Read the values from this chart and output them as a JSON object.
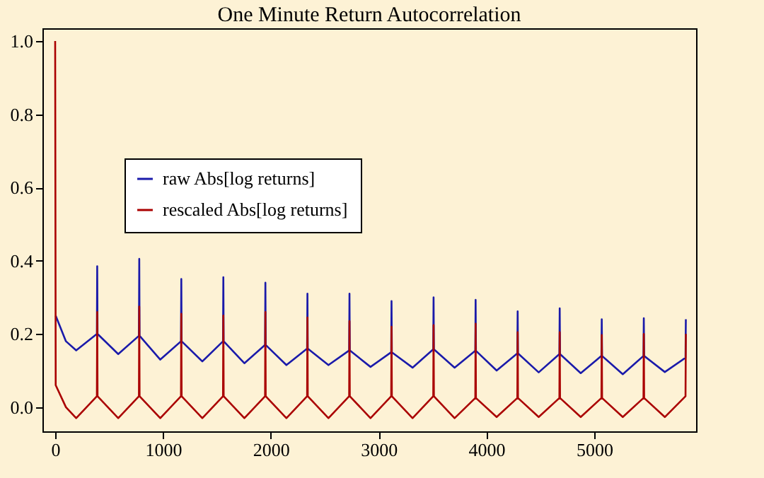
{
  "chart_data": {
    "type": "line",
    "title": "One Minute Return Autocorrelation",
    "x": [
      0,
      5,
      100,
      195,
      387,
      390,
      393,
      585,
      777,
      780,
      783,
      975,
      1167,
      1170,
      1173,
      1365,
      1557,
      1560,
      1563,
      1755,
      1947,
      1950,
      1953,
      2145,
      2337,
      2340,
      2343,
      2535,
      2727,
      2730,
      2733,
      2925,
      3117,
      3120,
      3123,
      3315,
      3507,
      3510,
      3513,
      3705,
      3897,
      3900,
      3903,
      4095,
      4287,
      4290,
      4293,
      4485,
      4677,
      4680,
      4683,
      4875,
      5067,
      5070,
      5073,
      5265,
      5457,
      5460,
      5463,
      5655,
      5847,
      5850
    ],
    "series": [
      {
        "name": "raw Abs[log returns]",
        "color": "#1a1aaa",
        "values": [
          null,
          0.25,
          0.18,
          0.155,
          0.2,
          0.385,
          0.2,
          0.145,
          0.195,
          0.405,
          0.195,
          0.13,
          0.18,
          0.35,
          0.18,
          0.125,
          0.18,
          0.355,
          0.18,
          0.12,
          0.17,
          0.34,
          0.17,
          0.115,
          0.16,
          0.31,
          0.16,
          0.115,
          0.155,
          0.31,
          0.155,
          0.11,
          0.15,
          0.29,
          0.15,
          0.108,
          0.158,
          0.3,
          0.158,
          0.108,
          0.154,
          0.293,
          0.154,
          0.1,
          0.147,
          0.262,
          0.147,
          0.095,
          0.145,
          0.27,
          0.145,
          0.093,
          0.14,
          0.24,
          0.14,
          0.09,
          0.14,
          0.243,
          0.14,
          0.096,
          0.135,
          0.24
        ]
      },
      {
        "name": "rescaled Abs[log returns]",
        "color": "#aa0000",
        "values": [
          1.0,
          0.06,
          0.0,
          -0.03,
          0.03,
          0.26,
          0.03,
          -0.03,
          0.03,
          0.275,
          0.03,
          -0.03,
          0.03,
          0.255,
          0.03,
          -0.03,
          0.03,
          0.25,
          0.03,
          -0.03,
          0.03,
          0.26,
          0.03,
          -0.03,
          0.03,
          0.245,
          0.03,
          -0.03,
          0.03,
          0.235,
          0.03,
          -0.03,
          0.03,
          0.22,
          0.03,
          -0.03,
          0.03,
          0.224,
          0.03,
          -0.03,
          0.025,
          0.228,
          0.025,
          -0.027,
          0.025,
          0.205,
          0.025,
          -0.027,
          0.025,
          0.205,
          0.025,
          -0.027,
          0.025,
          0.197,
          0.025,
          -0.027,
          0.025,
          0.2,
          0.025,
          -0.027,
          0.03,
          0.2
        ]
      }
    ],
    "xlim": [
      -118,
      5945
    ],
    "ylim": [
      -0.066,
      1.035
    ],
    "xticks": [
      0,
      1000,
      2000,
      3000,
      4000,
      5000
    ],
    "yticks": [
      {
        "value": 0,
        "label": "0.0"
      },
      {
        "value": 0.2,
        "label": "0.2"
      },
      {
        "value": 0.4,
        "label": "0.4"
      },
      {
        "value": 0.6,
        "label": "0.6"
      },
      {
        "value": 0.8,
        "label": "0.8"
      },
      {
        "value": 1,
        "label": "1.0"
      }
    ],
    "grid": false,
    "legend": "left"
  }
}
